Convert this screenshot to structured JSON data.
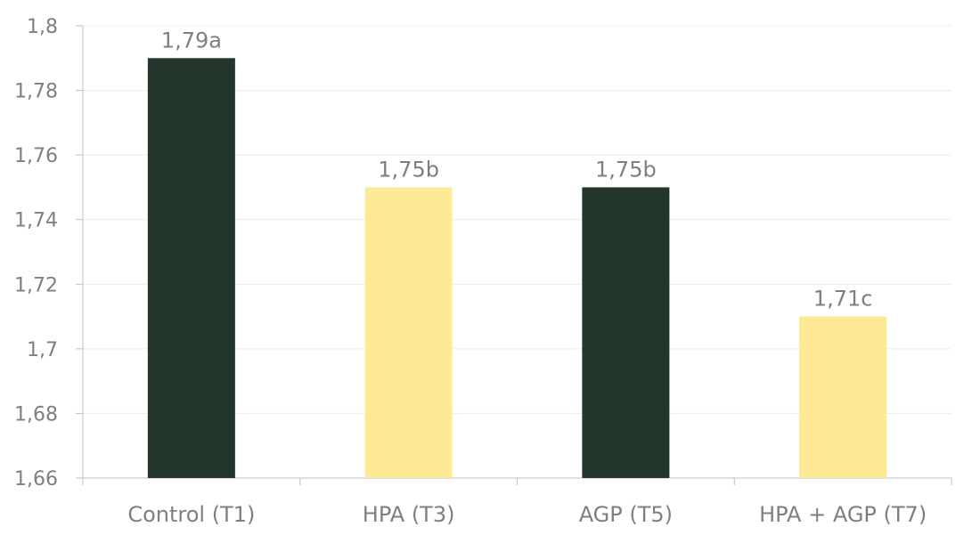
{
  "chart_data": {
    "type": "bar",
    "categories": [
      "Control (T1)",
      "HPA (T3)",
      "AGP (T5)",
      "HPA + AGP (T7)"
    ],
    "values": [
      1.79,
      1.75,
      1.75,
      1.71
    ],
    "data_labels": [
      "1,79a",
      "1,75b",
      "1,75b",
      "1,71c"
    ],
    "bar_colors": [
      "#23362c",
      "#fde996",
      "#23362c",
      "#fde996"
    ],
    "title": "",
    "xlabel": "",
    "ylabel": "",
    "ylim": [
      1.66,
      1.8
    ],
    "yticks": [
      1.66,
      1.68,
      1.7,
      1.72,
      1.74,
      1.76,
      1.78,
      1.8
    ],
    "ytick_labels": [
      "1,66",
      "1,68",
      "1,7",
      "1,72",
      "1,74",
      "1,76",
      "1,78",
      "1,8"
    ],
    "grid": true,
    "legend": "none",
    "colors": {
      "text": "#7f7f7f",
      "grid": "#ececec",
      "axis": "#bfbfbf"
    }
  }
}
